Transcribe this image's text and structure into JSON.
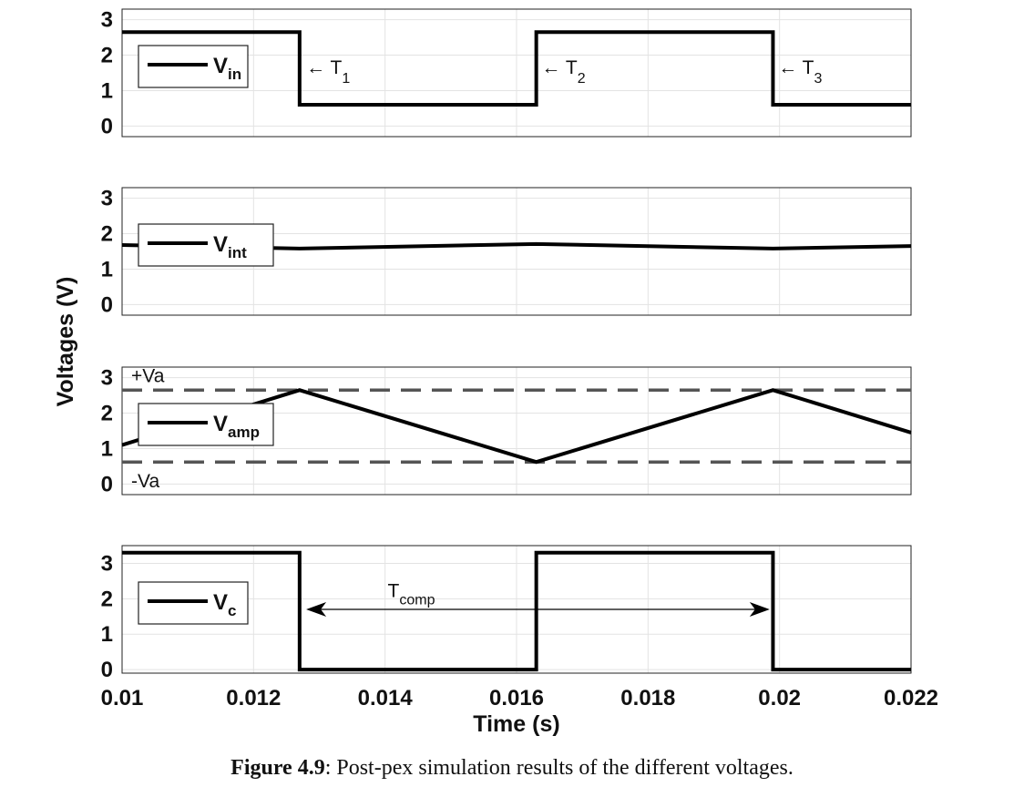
{
  "chart_data": {
    "type": "line",
    "xlabel": "Time (s)",
    "ylabel": "Voltages (V)",
    "xlim": [
      0.01,
      0.022
    ],
    "xticks": [
      0.01,
      0.012,
      0.014,
      0.016,
      0.018,
      0.02,
      0.022
    ],
    "xtick_labels": [
      "0.01",
      "0.012",
      "0.014",
      "0.016",
      "0.018",
      "0.02",
      "0.022"
    ],
    "grid": true,
    "subplots": [
      {
        "ylim": [
          -0.3,
          3.3
        ],
        "yticks": [
          0,
          1,
          2,
          3
        ],
        "legend": {
          "main": "V",
          "sub": "in",
          "placement": "left"
        },
        "series": [
          {
            "name": "Vin",
            "x": [
              0.01,
              0.0127,
              0.0127,
              0.0163,
              0.0163,
              0.0199,
              0.0199,
              0.022
            ],
            "y": [
              2.65,
              2.65,
              0.6,
              0.6,
              2.65,
              2.65,
              0.6,
              0.6
            ]
          }
        ],
        "annotations": [
          {
            "text": "← T",
            "sub": "1",
            "x": 0.0128,
            "y": 1.6
          },
          {
            "text": "← T",
            "sub": "2",
            "x": 0.01638,
            "y": 1.6
          },
          {
            "text": "← T",
            "sub": "3",
            "x": 0.01998,
            "y": 1.6
          }
        ]
      },
      {
        "ylim": [
          -0.3,
          3.3
        ],
        "yticks": [
          0,
          1,
          2,
          3
        ],
        "legend": {
          "main": "V",
          "sub": "int",
          "placement": "left"
        },
        "series": [
          {
            "name": "Vint",
            "x": [
              0.01,
              0.0127,
              0.0163,
              0.0199,
              0.022
            ],
            "y": [
              1.68,
              1.58,
              1.71,
              1.58,
              1.65
            ]
          }
        ]
      },
      {
        "ylim": [
          -0.3,
          3.3
        ],
        "yticks": [
          0,
          1,
          2,
          3
        ],
        "legend": {
          "main": "V",
          "sub": "amp",
          "placement": "left"
        },
        "series": [
          {
            "name": "Vamp",
            "x": [
              0.01,
              0.0127,
              0.0163,
              0.0199,
              0.022
            ],
            "y": [
              1.1,
              2.65,
              0.62,
              2.65,
              1.45
            ]
          }
        ],
        "reference_lines": [
          {
            "label": "+Va",
            "y": 2.65
          },
          {
            "label": "-Va",
            "y": 0.62
          }
        ]
      },
      {
        "ylim": [
          -0.1,
          3.5
        ],
        "yticks": [
          0,
          1,
          2,
          3
        ],
        "legend": {
          "main": "V",
          "sub": "c",
          "placement": "left"
        },
        "series": [
          {
            "name": "Vc",
            "x": [
              0.01,
              0.0127,
              0.0127,
              0.0163,
              0.0163,
              0.0199,
              0.0199,
              0.022
            ],
            "y": [
              3.3,
              3.3,
              0,
              0,
              3.3,
              3.3,
              0,
              0
            ]
          }
        ],
        "arrow_annotation": {
          "text": "T",
          "sub": "comp",
          "x_start": 0.0128,
          "x_end": 0.01985,
          "y": 1.7,
          "label_x": 0.0144,
          "label_y": 2.05
        }
      }
    ]
  },
  "caption": {
    "label": "Figure 4.9",
    "text": ": Post-pex simulation results of the different voltages."
  }
}
